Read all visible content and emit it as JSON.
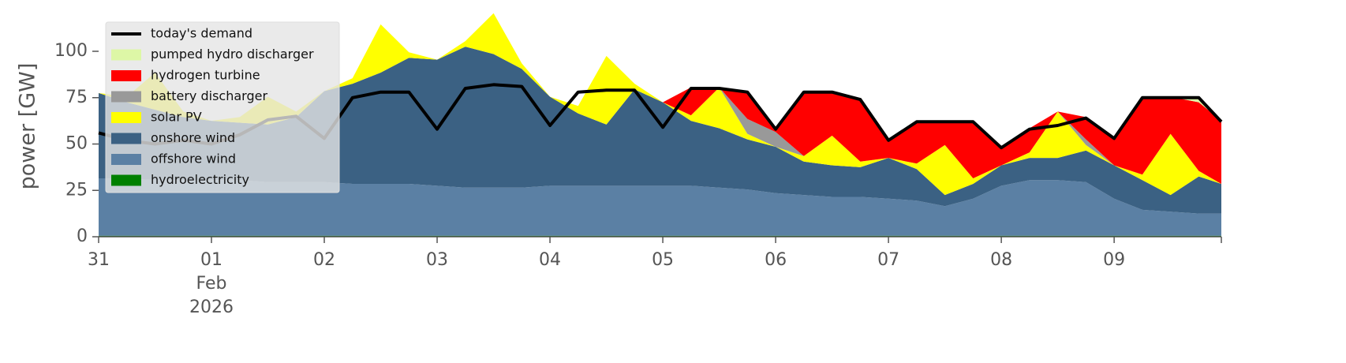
{
  "chart_data": {
    "type": "area",
    "y_label": "power [GW]",
    "x": [
      0,
      0.25,
      0.5,
      0.75,
      1,
      1.25,
      1.5,
      1.75,
      2,
      2.25,
      2.5,
      2.75,
      3,
      3.25,
      3.5,
      3.75,
      4,
      4.25,
      4.5,
      4.75,
      5,
      5.25,
      5.5,
      5.75,
      6,
      6.25,
      6.5,
      6.75,
      7,
      7.25,
      7.5,
      7.75,
      8,
      8.25,
      8.5,
      8.75,
      9,
      9.25,
      9.5,
      9.75,
      9.95
    ],
    "xlim": [
      0,
      9.95
    ],
    "xticks": [
      {
        "value": 0,
        "label": "31"
      },
      {
        "value": 1,
        "label": "01"
      },
      {
        "value": 2,
        "label": "02"
      },
      {
        "value": 3,
        "label": "03"
      },
      {
        "value": 4,
        "label": "04"
      },
      {
        "value": 5,
        "label": "05"
      },
      {
        "value": 6,
        "label": "06"
      },
      {
        "value": 7,
        "label": "07"
      },
      {
        "value": 8,
        "label": "08"
      },
      {
        "value": 9,
        "label": "09"
      }
    ],
    "month_label": "Feb",
    "year_label": "2026",
    "ylim": [
      0,
      120
    ],
    "yticks": [
      0,
      25,
      50,
      75,
      100
    ],
    "stacked": true,
    "series": [
      {
        "name": "hydroelectricity",
        "color": "#008000",
        "values": [
          0.5,
          0.5,
          0.5,
          0.5,
          0.5,
          0.5,
          0.5,
          0.5,
          0.5,
          0.5,
          0.5,
          0.5,
          0.5,
          0.5,
          0.5,
          0.5,
          0.5,
          0.5,
          0.5,
          0.5,
          0.5,
          0.5,
          0.5,
          0.5,
          0.5,
          0.5,
          0.5,
          0.5,
          0.5,
          0.5,
          0.5,
          0.5,
          0.5,
          0.5,
          0.5,
          0.5,
          0.5,
          0.5,
          0.5,
          0.5,
          0.5
        ]
      },
      {
        "name": "offshore wind",
        "color": "#5b80a4",
        "values": [
          31,
          31,
          30,
          30,
          30,
          30,
          29,
          29,
          29,
          28,
          28,
          28,
          27,
          26,
          26,
          26,
          27,
          27,
          27,
          27,
          27,
          27,
          26,
          25,
          23,
          22,
          21,
          21,
          20,
          19,
          16,
          20,
          27,
          30,
          30,
          29,
          20,
          14,
          13,
          12,
          12
        ]
      },
      {
        "name": "onshore wind",
        "color": "#3b6183",
        "values": [
          46,
          41,
          38,
          34,
          32,
          31,
          31,
          35,
          49,
          54,
          60,
          68,
          68,
          76,
          72,
          64,
          48,
          39,
          33,
          52,
          45,
          35,
          32,
          27,
          25,
          18,
          17,
          16,
          22,
          17,
          6,
          8,
          11,
          12,
          12,
          17,
          18,
          16,
          9,
          20,
          16
        ]
      },
      {
        "name": "solar PV",
        "color": "#ffff00",
        "values": [
          0,
          3,
          20,
          3,
          0,
          3,
          15,
          3,
          0,
          3,
          26,
          3,
          0,
          3,
          22,
          3,
          0,
          4,
          37,
          3,
          0,
          3,
          22,
          3,
          0,
          3,
          16,
          3,
          0,
          3,
          27,
          3,
          0,
          3,
          25,
          3,
          0,
          3,
          33,
          3,
          0
        ]
      },
      {
        "name": "battery discharger",
        "color": "#999999",
        "values": [
          0,
          0,
          0,
          0,
          0,
          0,
          0,
          0,
          0,
          0,
          0,
          0,
          0,
          0,
          0,
          0,
          0,
          0,
          0,
          0,
          0,
          0,
          0,
          8,
          8,
          0,
          0,
          0,
          0,
          0,
          0,
          0,
          0,
          0,
          0,
          3,
          0,
          0,
          0,
          0,
          0
        ]
      },
      {
        "name": "hydrogen turbine",
        "color": "#ff0000",
        "values": [
          0,
          0,
          0,
          0,
          0,
          0,
          0,
          0,
          0,
          0,
          0,
          0,
          0,
          0,
          0,
          0,
          0,
          0,
          0,
          0,
          0,
          15,
          0,
          15,
          2,
          35,
          24,
          34,
          10,
          23,
          13,
          31,
          10,
          13,
          0,
          12,
          15,
          42,
          20,
          37,
          34
        ]
      },
      {
        "name": "pumped hydro discharger",
        "color": "#ddf7a6",
        "values": [
          0,
          0,
          0,
          0,
          0,
          0,
          0,
          0,
          0,
          0,
          0,
          0,
          0,
          0,
          0,
          0,
          0,
          0,
          0,
          0,
          0,
          0,
          0,
          0,
          0,
          0,
          0,
          0,
          0,
          0,
          0,
          0,
          0,
          0,
          0,
          0,
          0,
          0,
          0,
          3,
          0
        ]
      }
    ],
    "line": {
      "name": "today's demand",
      "color": "#000000",
      "values": [
        56,
        52,
        50,
        52,
        50,
        55,
        63,
        65,
        53,
        75,
        78,
        78,
        58,
        80,
        82,
        81,
        60,
        78,
        79,
        79,
        59,
        80,
        80,
        78,
        58,
        78,
        78,
        74,
        52,
        62,
        62,
        62,
        48,
        58,
        60,
        64,
        53,
        75,
        75,
        75,
        62
      ]
    }
  }
}
